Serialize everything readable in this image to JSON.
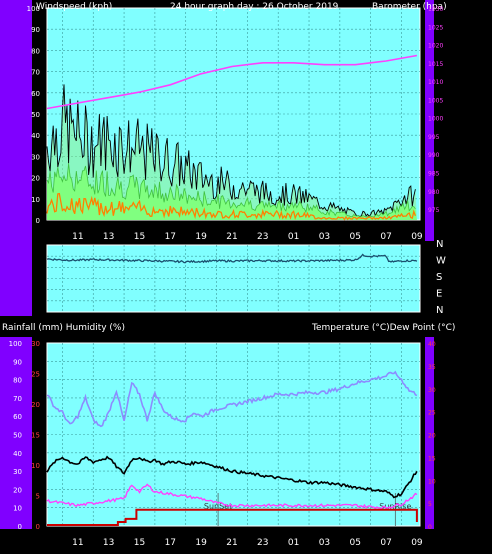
{
  "header": {
    "left": "Windspeed (kph)",
    "center": "24 hour graph day : 26 October 2019",
    "right": "Barometer (hpa)"
  },
  "footer_headers": {
    "left": "Rainfall (mm)  Humidity (%)",
    "right": "Temperature (°C)Dew Point (°C)"
  },
  "colors": {
    "outer_bg": "#000000",
    "side_panel": "#8000ff",
    "plot_bg": "#80ffff",
    "grid": "#3a9a9a",
    "wind_gust": "#000000",
    "wind_avg": "#80ff80",
    "wind_low": "#ff8000",
    "pressure": "#ff40ff",
    "wind_dir": "#1a4f6e",
    "humidity": "#8c8cff",
    "temperature": "#000000",
    "dewpoint": "#ff40ff",
    "rainfall": "#cc0000",
    "left_axis_text": "#ffffff",
    "right_axis_text": "#ff4040"
  },
  "chart_data": [
    {
      "type": "line",
      "title": "24 hour graph day : 26 October 2019",
      "ylabel": "Windspeed (kph)",
      "y2label": "Barometer (hpa)",
      "x_ticks": [
        "11",
        "13",
        "15",
        "17",
        "19",
        "21",
        "23",
        "01",
        "03",
        "05",
        "07",
        "09"
      ],
      "ylim": [
        0,
        100
      ],
      "yticks": [
        0,
        10,
        20,
        30,
        40,
        50,
        60,
        70,
        80,
        90,
        100
      ],
      "y2lim": [
        972,
        1030
      ],
      "y2ticks": [
        975,
        980,
        985,
        990,
        995,
        1000,
        1005,
        1010,
        1015,
        1020,
        1025,
        1030
      ],
      "series": [
        {
          "name": "Windspeed (kph)",
          "role": "gust",
          "x": [
            9,
            10,
            11,
            12,
            13,
            14,
            15,
            16,
            17,
            18,
            19,
            20,
            21,
            22,
            23,
            24,
            25,
            26,
            27,
            28,
            29,
            30,
            31,
            32,
            33
          ],
          "values": [
            35,
            45,
            40,
            36,
            38,
            35,
            33,
            30,
            28,
            24,
            20,
            18,
            16,
            15,
            13,
            12,
            12,
            10,
            7,
            5,
            3,
            3,
            4,
            10,
            12
          ]
        },
        {
          "name": "",
          "role": "average",
          "x": [
            9,
            10,
            11,
            12,
            13,
            14,
            15,
            16,
            17,
            18,
            19,
            20,
            21,
            22,
            23,
            24,
            25,
            26,
            27,
            28,
            29,
            30,
            31,
            32,
            33
          ],
          "values": [
            18,
            22,
            20,
            18,
            18,
            16,
            15,
            14,
            13,
            11,
            10,
            9,
            8,
            8,
            7,
            7,
            7,
            6,
            4,
            3,
            2,
            2,
            3,
            6,
            8
          ]
        },
        {
          "name": "",
          "role": "low",
          "x": [
            9,
            10,
            11,
            12,
            13,
            14,
            15,
            16,
            17,
            18,
            19,
            20,
            21,
            22,
            23,
            24,
            25,
            26,
            27,
            28,
            29,
            30,
            31,
            32,
            33
          ],
          "values": [
            7,
            9,
            8,
            7,
            7,
            6,
            6,
            5,
            5,
            4,
            4,
            3,
            3,
            3,
            3,
            3,
            3,
            2,
            1,
            1,
            1,
            1,
            1,
            2,
            3
          ]
        },
        {
          "name": "Barometer (hpa)",
          "axis": "right",
          "x": [
            9,
            11,
            13,
            15,
            17,
            19,
            21,
            23,
            25,
            27,
            29,
            31,
            33
          ],
          "values": [
            1002.5,
            1004,
            1005.5,
            1007,
            1009,
            1012,
            1014,
            1015,
            1015,
            1014.5,
            1014.5,
            1015.5,
            1017
          ]
        }
      ]
    },
    {
      "type": "line",
      "ylabels_right": [
        "N",
        "W",
        "S",
        "E",
        "N"
      ],
      "x_ticks": [],
      "series": [
        {
          "name": "",
          "x": [
            9,
            10,
            11,
            12,
            13,
            14,
            15,
            16,
            17,
            18,
            19,
            20,
            21,
            22,
            23,
            24,
            25,
            26,
            27,
            28,
            29,
            29.5,
            30,
            31,
            31.2,
            32,
            33
          ],
          "values": [
            285,
            280,
            278,
            282,
            280,
            278,
            276,
            275,
            272,
            270,
            272,
            275,
            274,
            275,
            276,
            275,
            274,
            275,
            276,
            278,
            280,
            305,
            300,
            300,
            268,
            275,
            276
          ]
        }
      ]
    },
    {
      "type": "line",
      "ylabel": "Rainfall (mm)  Humidity (%)",
      "y2label": "Temperature (°C)Dew Point (°C)",
      "x_ticks": [
        "11",
        "13",
        "15",
        "17",
        "19",
        "21",
        "23",
        "01",
        "03",
        "05",
        "07",
        "09"
      ],
      "ylim": [
        0,
        100
      ],
      "yticks": [
        0,
        10,
        20,
        30,
        40,
        50,
        60,
        70,
        80,
        90,
        100
      ],
      "rain_ticks": [
        "0",
        "5",
        "10",
        "15",
        "20",
        "25",
        "30"
      ],
      "y2lim": [
        0,
        40
      ],
      "y2ticks": [
        0,
        5,
        10,
        15,
        20,
        25,
        30,
        35,
        40
      ],
      "annotations": [
        {
          "text": "SunSet",
          "x": 20.1
        },
        {
          "text": "SunRise",
          "x": 31.6
        }
      ],
      "series": [
        {
          "name": "Humidity (%)",
          "x": [
            9,
            9.5,
            10,
            10.5,
            11,
            11.5,
            12,
            12.5,
            13,
            13.5,
            14,
            14.5,
            15,
            15.5,
            16,
            16.5,
            17,
            17.5,
            18,
            18.5,
            19,
            20,
            21,
            22,
            23,
            24,
            25,
            26,
            27,
            28,
            29,
            30,
            31,
            31.5,
            32,
            32.5,
            33
          ],
          "values": [
            72,
            65,
            62,
            55,
            60,
            70,
            58,
            54,
            62,
            74,
            57,
            78,
            72,
            58,
            73,
            64,
            60,
            58,
            58,
            62,
            60,
            64,
            66,
            68,
            70,
            72,
            72,
            73,
            73,
            75,
            78,
            80,
            82,
            84,
            80,
            74,
            72
          ]
        },
        {
          "name": "Temperature (°C)",
          "axis": "right",
          "x": [
            9,
            9.5,
            10,
            10.5,
            11,
            11.5,
            12,
            12.5,
            13,
            13.5,
            14,
            14.5,
            15,
            15.5,
            16,
            16.5,
            17,
            17.5,
            18,
            19,
            20,
            21,
            22,
            23,
            24,
            25,
            26,
            27,
            28,
            29,
            30,
            31,
            31.5,
            32,
            32.5,
            33
          ],
          "values": [
            12,
            14,
            15,
            14,
            13.5,
            15,
            14,
            14.5,
            15,
            13,
            11.5,
            14.5,
            15,
            14,
            14.5,
            13.5,
            14,
            14,
            13.5,
            14,
            13,
            12,
            11.5,
            11,
            10.5,
            10,
            9.5,
            9.5,
            9,
            8.5,
            8,
            7.5,
            6.5,
            7,
            9.5,
            12
          ]
        },
        {
          "name": "Dew Point (°C)",
          "axis": "right",
          "x": [
            9,
            10,
            11,
            12,
            13,
            14,
            14.5,
            15,
            15.5,
            16,
            17,
            18,
            19,
            20,
            21,
            22,
            23,
            24,
            25,
            26,
            27,
            28,
            29,
            30,
            31,
            32,
            33
          ],
          "values": [
            5.5,
            5,
            4.5,
            5,
            5.5,
            6,
            9,
            7.5,
            9,
            7.5,
            7,
            6.5,
            6,
            5,
            4.5,
            4.5,
            4.5,
            4.5,
            4.5,
            4.5,
            4.5,
            4.5,
            4.5,
            4.2,
            4,
            4.8,
            7
          ]
        },
        {
          "name": "Rainfall (mm)",
          "x": [
            9,
            13.6,
            13.6,
            14.1,
            14.1,
            14.8,
            14.8,
            33,
            33
          ],
          "values": [
            0,
            0,
            0.5,
            0.5,
            1.0,
            1.0,
            2.5,
            2.5,
            0.5
          ]
        }
      ]
    }
  ]
}
